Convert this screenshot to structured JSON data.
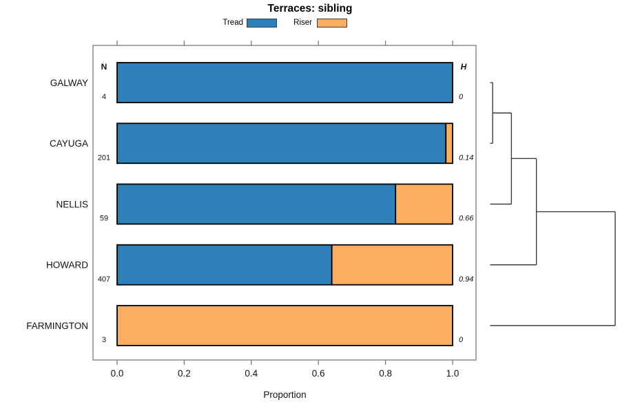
{
  "title": "Terraces: sibling",
  "legend": {
    "items": [
      {
        "label": "Tread",
        "color": "#2E81B8"
      },
      {
        "label": "Riser",
        "color": "#FBAD60"
      }
    ]
  },
  "table_headers": {
    "n": "N",
    "h": "H"
  },
  "x_axis": {
    "label": "Proportion",
    "tick_labels": [
      "0.0",
      "0.2",
      "0.4",
      "0.6",
      "0.8",
      "1.0"
    ],
    "tick_values": [
      0,
      0.2,
      0.4,
      0.6,
      0.8,
      1.0
    ],
    "range": [
      0,
      1
    ]
  },
  "chart_data": {
    "type": "bar",
    "subtype": "horizontal-stacked-proportion",
    "title": "Terraces: sibling",
    "xlabel": "Proportion",
    "xlim": [
      0,
      1
    ],
    "grid": false,
    "legend_position": "top",
    "categories": [
      "GALWAY",
      "CAYUGA",
      "NELLIS",
      "HOWARD",
      "FARMINGTON"
    ],
    "n_values": [
      "4",
      "201",
      "59",
      "407",
      "3"
    ],
    "h_values": [
      "0",
      "0.14",
      "0.66",
      "0.94",
      "0"
    ],
    "series": [
      {
        "name": "Tread",
        "color": "#2E81B8",
        "values": [
          1.0,
          0.98,
          0.83,
          0.64,
          0.0
        ]
      },
      {
        "name": "Riser",
        "color": "#FBAD60",
        "values": [
          0.0,
          0.02,
          0.17,
          0.36,
          1.0
        ]
      }
    ],
    "dendrogram": {
      "side": "right",
      "start_leaf": "GALWAY",
      "merges": [
        {
          "with": "CAYUGA",
          "height": 0.02
        },
        {
          "with": "NELLIS",
          "height": 0.17
        },
        {
          "with": "HOWARD",
          "height": 0.37
        },
        {
          "with": "FARMINGTON",
          "height": 1.0
        }
      ]
    }
  }
}
